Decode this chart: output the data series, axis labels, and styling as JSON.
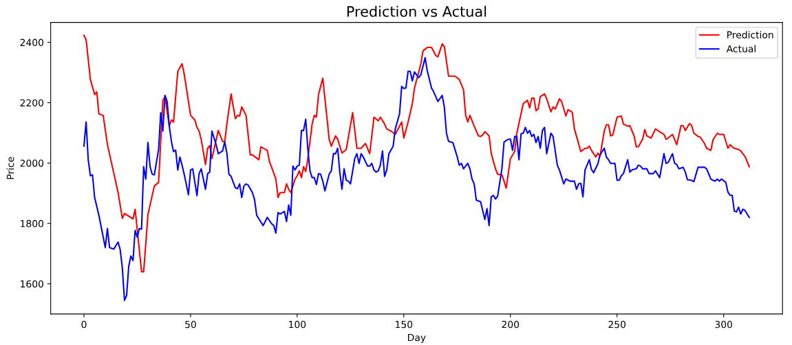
{
  "chart_data": {
    "type": "line",
    "title": "Prediction vs Actual",
    "xlabel": "Day",
    "ylabel": "Price",
    "xlim": [
      -15.6,
      327.6
    ],
    "xticks": [
      0,
      50,
      100,
      150,
      200,
      250,
      300
    ],
    "ylim": [
      1500,
      2466
    ],
    "yticks": [
      1600,
      1800,
      2000,
      2200,
      2400
    ],
    "legend": "top right",
    "grid": false,
    "line_style": "solid",
    "marker": "none",
    "series": [
      {
        "name": "Prediction",
        "color": "#ff0000",
        "x": [
          0,
          1,
          3,
          5,
          6,
          7,
          9,
          11,
          16,
          18,
          19,
          23,
          24,
          27,
          28,
          30,
          33,
          35,
          37,
          38,
          40,
          41,
          42,
          44,
          46,
          47,
          49,
          50,
          52,
          53,
          54,
          55,
          57,
          58,
          59,
          60,
          63,
          65,
          66,
          67,
          69,
          71,
          72,
          73,
          74,
          76,
          78,
          79,
          82,
          83,
          86,
          87,
          88,
          90,
          91,
          92,
          94,
          95,
          96,
          97,
          99,
          100,
          101,
          102,
          103,
          104,
          105,
          107,
          108,
          109,
          110,
          112,
          115,
          116,
          118,
          119,
          121,
          123,
          126,
          128,
          130,
          132,
          134,
          136,
          138,
          139,
          141,
          142,
          144,
          146,
          149,
          150,
          152,
          154,
          155,
          158,
          159,
          161,
          163,
          165,
          166,
          168,
          169,
          171,
          174,
          176,
          178,
          179,
          180,
          181,
          183,
          185,
          186,
          187,
          188,
          190,
          191,
          193,
          194,
          196,
          197,
          198,
          200,
          202,
          203,
          206,
          208,
          209,
          210,
          211,
          212,
          213,
          214,
          216,
          217,
          219,
          220,
          221,
          223,
          224,
          226,
          227,
          229,
          230,
          233,
          235,
          236,
          237,
          238,
          240,
          241,
          242,
          244,
          245,
          246,
          247,
          248,
          250,
          252,
          253,
          255,
          256,
          258,
          259,
          260,
          262,
          263,
          264,
          266,
          268,
          270,
          272,
          273,
          274,
          276,
          278,
          280,
          281,
          282,
          284,
          285,
          286,
          288,
          289,
          291,
          292,
          294,
          295,
          297,
          298,
          300,
          302,
          303,
          304,
          305,
          307,
          308,
          310,
          312
        ],
        "values": [
          2423,
          2409,
          2277,
          2227,
          2236,
          2163,
          2158,
          2061,
          1902,
          1817,
          1833,
          1815,
          1847,
          1640,
          1640,
          1829,
          1924,
          1936,
          2208,
          2220,
          2122,
          2143,
          2136,
          2304,
          2329,
          2295,
          2204,
          2158,
          2143,
          2118,
          2106,
          2077,
          1995,
          2049,
          2058,
          2015,
          2108,
          2072,
          2070,
          2129,
          2229,
          2147,
          2158,
          2156,
          2186,
          2158,
          2027,
          2027,
          2011,
          2054,
          2042,
          2004,
          1986,
          1947,
          1886,
          1902,
          1902,
          1931,
          1913,
          1902,
          1947,
          1958,
          1974,
          1952,
          1988,
          1972,
          2015,
          2129,
          2158,
          2152,
          2227,
          2281,
          2079,
          2056,
          2090,
          2079,
          2033,
          2045,
          2167,
          2049,
          2049,
          2065,
          2031,
          2152,
          2140,
          2152,
          2129,
          2113,
          2106,
          2095,
          2136,
          2083,
          2136,
          2197,
          2249,
          2329,
          2372,
          2383,
          2383,
          2356,
          2352,
          2395,
          2386,
          2288,
          2288,
          2277,
          2243,
          2158,
          2136,
          2158,
          2122,
          2090,
          2088,
          2093,
          2104,
          2090,
          2031,
          1981,
          1963,
          1961,
          1940,
          1917,
          2015,
          2038,
          2099,
          2197,
          2208,
          2183,
          2215,
          2215,
          2174,
          2179,
          2220,
          2229,
          2213,
          2170,
          2186,
          2179,
          2213,
          2204,
          2156,
          2177,
          2168,
          2113,
          2038,
          2049,
          2049,
          2056,
          2042,
          2020,
          2033,
          2022,
          2106,
          2127,
          2127,
          2090,
          2093,
          2152,
          2156,
          2129,
          2122,
          2124,
          2090,
          2054,
          2054,
          2079,
          2111,
          2090,
          2083,
          2113,
          2104,
          2095,
          2079,
          2083,
          2095,
          2061,
          2124,
          2124,
          2108,
          2131,
          2124,
          2099,
          2088,
          2086,
          2065,
          2049,
          2042,
          2077,
          2099,
          2095,
          2095,
          2049,
          2061,
          2054,
          2049,
          2045,
          2040,
          2022,
          1988
        ]
      },
      {
        "name": "Actual",
        "color": "#0000ff",
        "x": [
          0,
          1,
          2,
          3,
          4,
          5,
          7,
          10,
          11,
          12,
          14,
          16,
          17,
          18,
          19,
          20,
          21,
          22,
          23,
          24,
          25,
          26,
          27,
          28,
          29,
          30,
          31,
          32,
          33,
          35,
          36,
          37,
          38,
          39,
          40,
          41,
          42,
          43,
          44,
          45,
          46,
          47,
          49,
          50,
          51,
          53,
          54,
          55,
          57,
          58,
          59,
          60,
          62,
          63,
          65,
          66,
          67,
          68,
          69,
          71,
          72,
          73,
          74,
          75,
          76,
          77,
          79,
          80,
          81,
          83,
          84,
          86,
          88,
          89,
          90,
          91,
          92,
          94,
          95,
          96,
          97,
          98,
          99,
          100,
          101,
          102,
          103,
          104,
          105,
          106,
          107,
          108,
          109,
          110,
          111,
          112,
          113,
          115,
          116,
          117,
          118,
          119,
          120,
          121,
          122,
          123,
          124,
          125,
          127,
          128,
          129,
          130,
          131,
          133,
          134,
          135,
          136,
          137,
          138,
          139,
          140,
          141,
          142,
          143,
          145,
          146,
          148,
          149,
          150,
          151,
          152,
          153,
          154,
          155,
          157,
          158,
          160,
          161,
          163,
          164,
          166,
          168,
          169,
          170,
          171,
          173,
          175,
          176,
          177,
          178,
          180,
          181,
          182,
          183,
          184,
          186,
          188,
          189,
          190,
          191,
          192,
          193,
          194,
          196,
          197,
          199,
          200,
          201,
          202,
          203,
          204,
          205,
          206,
          207,
          208,
          209,
          210,
          211,
          212,
          213,
          214,
          215,
          216,
          217,
          218,
          219,
          220,
          222,
          223,
          225,
          226,
          228,
          230,
          231,
          232,
          233,
          234,
          235,
          237,
          238,
          239,
          241,
          242,
          244,
          245,
          246,
          247,
          249,
          250,
          251,
          252,
          253,
          255,
          256,
          257,
          259,
          260,
          261,
          262,
          264,
          265,
          267,
          268,
          270,
          272,
          273,
          274,
          276,
          277,
          278,
          279,
          281,
          282,
          283,
          285,
          286,
          288,
          289,
          291,
          292,
          294,
          295,
          296,
          297,
          298,
          299,
          301,
          302,
          303,
          304,
          305,
          306,
          307,
          308,
          309,
          310,
          312
        ],
        "values": [
          2056,
          2136,
          2011,
          1958,
          1961,
          1886,
          1827,
          1720,
          1783,
          1720,
          1715,
          1738,
          1713,
          1652,
          1545,
          1561,
          1658,
          1692,
          1677,
          1777,
          1754,
          1783,
          1781,
          1988,
          1947,
          2068,
          1988,
          1963,
          1961,
          2045,
          2167,
          2106,
          2224,
          2204,
          2124,
          2072,
          2038,
          2043,
          1977,
          2020,
          1993,
          1963,
          1895,
          1977,
          1981,
          1892,
          1965,
          1981,
          1913,
          1965,
          1970,
          2106,
          2061,
          2031,
          2040,
          2070,
          2034,
          1963,
          1956,
          1918,
          1915,
          1931,
          1886,
          1924,
          1931,
          1927,
          1902,
          1879,
          1827,
          1804,
          1793,
          1820,
          1799,
          1793,
          1768,
          1836,
          1831,
          1840,
          1806,
          1861,
          1827,
          1990,
          1977,
          1990,
          1993,
          2108,
          2108,
          2145,
          2045,
          1974,
          1952,
          1952,
          1929,
          1965,
          1963,
          1940,
          1908,
          1963,
          1974,
          2031,
          2031,
          2049,
          1968,
          1913,
          1981,
          1943,
          1940,
          1931,
          2015,
          2031,
          1999,
          2031,
          2020,
          1990,
          1990,
          1999,
          1977,
          1970,
          1974,
          1993,
          2040,
          1956,
          1977,
          2031,
          2056,
          2113,
          2163,
          2254,
          2247,
          2249,
          2304,
          2304,
          2272,
          2302,
          2283,
          2293,
          2349,
          2306,
          2249,
          2236,
          2204,
          2224,
          2186,
          2099,
          2072,
          2068,
          2022,
          1993,
          1999,
          1981,
          1999,
          1981,
          1947,
          1931,
          1877,
          1872,
          1813,
          1849,
          1793,
          1888,
          1893,
          1881,
          1890,
          1981,
          2070,
          2079,
          2079,
          2042,
          2088,
          2088,
          2011,
          2097,
          2099,
          2118,
          2099,
          2108,
          2088,
          2095,
          2068,
          2088,
          2049,
          2108,
          2118,
          2031,
          2065,
          2099,
          2088,
          1993,
          1977,
          1931,
          1947,
          1940,
          1940,
          1913,
          1931,
          1933,
          1888,
          1977,
          2011,
          1979,
          1968,
          1997,
          2027,
          2049,
          2020,
          2011,
          1999,
          1999,
          1943,
          1943,
          1958,
          1965,
          2011,
          1970,
          1977,
          1981,
          1993,
          1990,
          1981,
          1981,
          1965,
          1965,
          1974,
          1952,
          2031,
          1999,
          2002,
          2031,
          1999,
          1995,
          1981,
          1986,
          1970,
          1945,
          1943,
          1938,
          1986,
          1986,
          1986,
          1981,
          1947,
          1943,
          1940,
          1947,
          1940,
          1947,
          1936,
          1904,
          1893,
          1893,
          1841,
          1838,
          1854,
          1831,
          1847,
          1843,
          1820
        ]
      }
    ]
  }
}
